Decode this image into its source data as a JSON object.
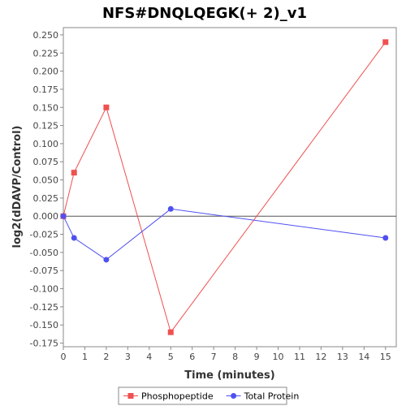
{
  "chart_data": {
    "type": "line",
    "title": "NFS#DNQLQEGK(+ 2)_v1",
    "xlabel": "Time (minutes)",
    "ylabel": "log2(dDAVP/Control)",
    "xlim": [
      0,
      15.5
    ],
    "ylim": [
      -0.18,
      0.26
    ],
    "xticks": [
      0,
      1,
      2,
      3,
      4,
      5,
      6,
      7,
      8,
      9,
      10,
      11,
      12,
      13,
      14,
      15
    ],
    "yticks": [
      -0.175,
      -0.15,
      -0.125,
      -0.1,
      -0.075,
      -0.05,
      -0.025,
      0.0,
      0.025,
      0.05,
      0.075,
      0.1,
      0.125,
      0.15,
      0.175,
      0.2,
      0.225,
      0.25
    ],
    "ytick_labels": [
      "-0.175",
      "-0.150",
      "-0.125",
      "-0.100",
      "-0.075",
      "-0.050",
      "-0.025",
      "0.000",
      "0.025",
      "0.050",
      "0.075",
      "0.100",
      "0.125",
      "0.150",
      "0.175",
      "0.200",
      "0.225",
      "0.250"
    ],
    "zero_line": true,
    "legend_position": "bottom",
    "series": [
      {
        "name": "Phosphopeptide",
        "color": "#f05050",
        "marker": "square",
        "x": [
          0,
          0.5,
          2,
          5,
          15
        ],
        "y": [
          0.0,
          0.06,
          0.15,
          -0.16,
          0.24
        ]
      },
      {
        "name": "Total Protein",
        "color": "#5050f0",
        "marker": "circle",
        "x": [
          0,
          0.5,
          2,
          5,
          15
        ],
        "y": [
          0.0,
          -0.03,
          -0.06,
          0.01,
          -0.03
        ]
      }
    ]
  }
}
